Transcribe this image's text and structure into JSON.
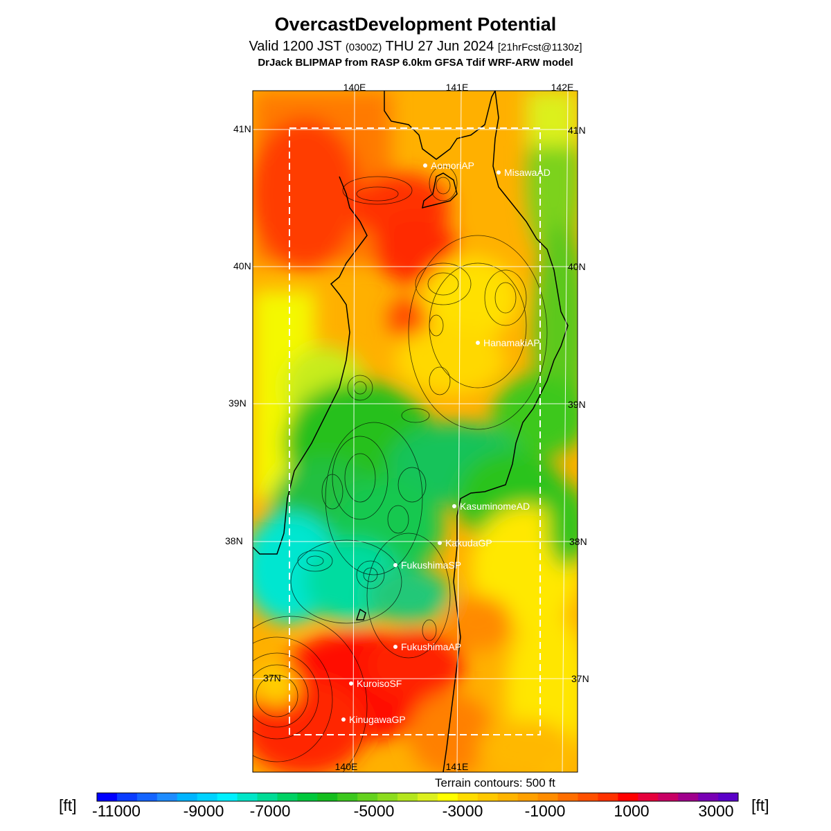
{
  "header": {
    "title": "OvercastDevelopment Potential",
    "valid_prefix": "Valid 1200 JST",
    "valid_zulu": "(0300Z)",
    "valid_date": "THU 27 Jun 2024",
    "forecast": "[21hrFcst@1130z]",
    "model": "DrJack BLIPMAP from RASP 6.0km GFSA Tdif WRF-ARW model"
  },
  "map": {
    "lon_top": [
      "140E",
      "141E",
      "142E"
    ],
    "lon_bottom": [
      "140E",
      "141E"
    ],
    "lat_left": [
      "41N",
      "40N",
      "39N",
      "38N",
      "37N"
    ],
    "lat_right": [
      "41N",
      "40N",
      "39N",
      "38N",
      "37N"
    ],
    "stations": [
      {
        "name": "AomoriAP"
      },
      {
        "name": "MisawaAD"
      },
      {
        "name": "HanamakiAP"
      },
      {
        "name": "KasuminomeAD"
      },
      {
        "name": "KakudaGP"
      },
      {
        "name": "FukushimaSP"
      },
      {
        "name": "FukushimaAP"
      },
      {
        "name": "KuroisoSF"
      },
      {
        "name": "KinugawaGP"
      }
    ],
    "terrain_note": "Terrain contours: 500 ft"
  },
  "colorbar": {
    "unit": "[ft]",
    "ticks": [
      "-11000",
      "-9000",
      "-7000",
      "-5000",
      "-3000",
      "-1000",
      "1000",
      "3000"
    ],
    "colors": [
      "#0000ff",
      "#0a3cff",
      "#1464ff",
      "#1e8cff",
      "#00b4ff",
      "#00d2ff",
      "#00f0ff",
      "#00e6c8",
      "#00dc96",
      "#00d264",
      "#00c83c",
      "#14be1e",
      "#3cc81e",
      "#64d21e",
      "#8cdc1e",
      "#b4e61e",
      "#dcf01e",
      "#ffff00",
      "#ffdc00",
      "#ffc800",
      "#ffb400",
      "#ffa000",
      "#ff8c00",
      "#ff6e00",
      "#ff5000",
      "#ff3200",
      "#ff0000",
      "#e6003c",
      "#c80064",
      "#a0008c",
      "#7800b4",
      "#5a00c8"
    ]
  }
}
